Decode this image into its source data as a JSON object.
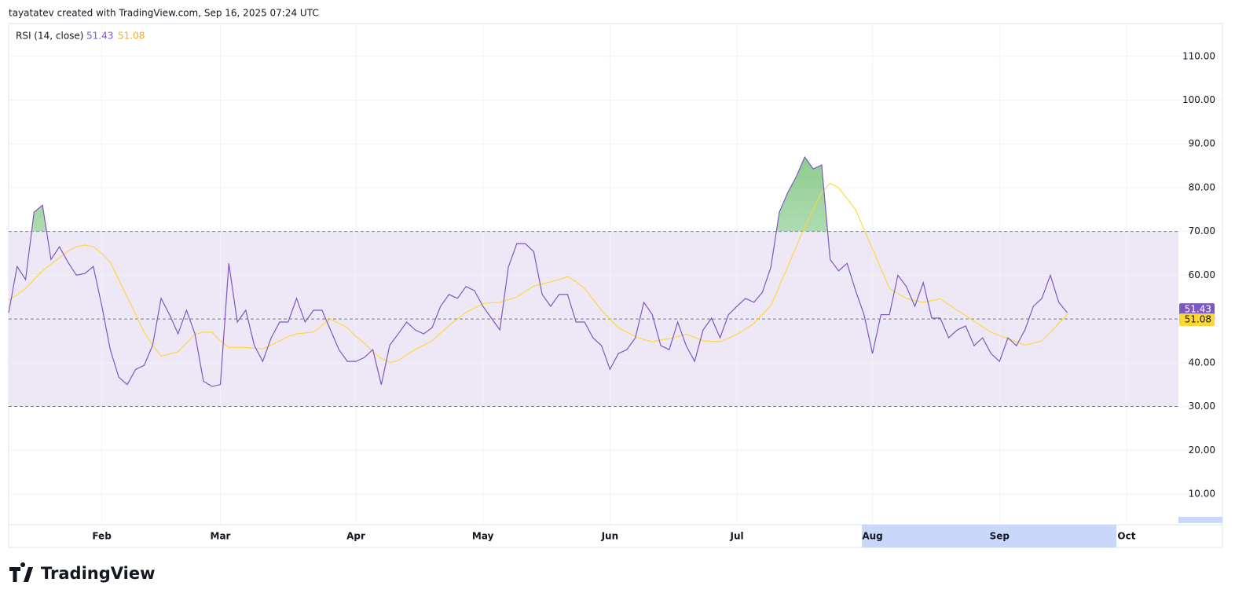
{
  "header": {
    "text": "tayatatev created with TradingView.com, Sep 16, 2025 07:24 UTC"
  },
  "footer": {
    "logo": "TradingView"
  },
  "chart_data": {
    "type": "line",
    "indicator": "RSI (14, close)",
    "categories": [
      null,
      null,
      null,
      null,
      null,
      null,
      null,
      null,
      null,
      null,
      null,
      "Feb",
      null,
      null,
      null,
      null,
      null,
      null,
      null,
      null,
      null,
      null,
      null,
      null,
      null,
      "Mar",
      null,
      null,
      null,
      null,
      null,
      null,
      null,
      null,
      null,
      null,
      null,
      null,
      null,
      null,
      null,
      "Apr",
      null,
      null,
      null,
      null,
      null,
      null,
      null,
      null,
      null,
      null,
      null,
      null,
      null,
      null,
      "May",
      null,
      null,
      null,
      null,
      null,
      null,
      null,
      null,
      null,
      null,
      null,
      null,
      null,
      null,
      "Jun",
      null,
      null,
      null,
      null,
      null,
      null,
      null,
      null,
      null,
      null,
      null,
      null,
      null,
      null,
      "Jul",
      null,
      null,
      null,
      null,
      null,
      null,
      null,
      null,
      null,
      null,
      null,
      null,
      null,
      null,
      null,
      "Aug",
      null,
      null,
      null,
      null,
      null,
      null,
      null,
      null,
      null,
      null,
      null,
      null,
      null,
      null,
      "Sep",
      null,
      null,
      null,
      null,
      null,
      null,
      null,
      null,
      null,
      null,
      null,
      null,
      null,
      null,
      "Oct",
      null,
      null,
      null,
      null,
      null
    ],
    "series": [
      {
        "color": "#7e57c2",
        "values": [
          51.4,
          62,
          59,
          74.4,
          76,
          63.6,
          66.5,
          63,
          60,
          60.4,
          62,
          53,
          43,
          36.7,
          35,
          38.5,
          39.4,
          44,
          54.7,
          51,
          46.6,
          52,
          46.6,
          35.8,
          34.6,
          35,
          62.7,
          49.3,
          52,
          44,
          40.3,
          45.7,
          49.3,
          49.3,
          54.7,
          49.3,
          52,
          52,
          47.5,
          43,
          40.3,
          40.3,
          41.2,
          43,
          35,
          44,
          46.6,
          49.3,
          47.5,
          46.6,
          48,
          52.9,
          55.6,
          54.7,
          57.4,
          56.5,
          52.9,
          50.2,
          47.5,
          61.8,
          67.2,
          67.2,
          65.4,
          55.6,
          52.9,
          55.6,
          55.6,
          49.3,
          49.3,
          45.7,
          43.9,
          38.5,
          42.1,
          43,
          45.7,
          53.8,
          51,
          43.9,
          43,
          49.3,
          43.9,
          40.3,
          47.5,
          50.2,
          45.7,
          51,
          52.9,
          54.7,
          53.8,
          56.1,
          61.8,
          74.4,
          78.9,
          82.5,
          87,
          84.3,
          85.2,
          63.6,
          61,
          62.7,
          56.5,
          51,
          42.1,
          51,
          51,
          60,
          57.4,
          52.9,
          58.3,
          50.2,
          50.2,
          45.7,
          47.5,
          48.4,
          43.9,
          45.7,
          42.1,
          40.3,
          45.7,
          43.9,
          47.5,
          52.9,
          54.7,
          60,
          53.8,
          51.43,
          null,
          null,
          null,
          null,
          null,
          null,
          null,
          null,
          null,
          null,
          null,
          null
        ]
      },
      {
        "color": "#fdd835",
        "values": [
          54.3,
          55.5,
          57,
          59,
          61,
          62.5,
          64,
          65.5,
          66.5,
          66.9,
          66.5,
          65,
          63,
          59,
          55,
          51,
          47,
          44,
          41.5,
          42,
          42.5,
          44.5,
          46.5,
          47,
          47,
          45,
          43.5,
          43.5,
          43.5,
          43.3,
          43.2,
          44,
          45,
          46,
          46.6,
          46.8,
          47,
          48.5,
          50,
          49,
          48,
          46,
          44.5,
          42.5,
          41,
          40,
          40.5,
          41.8,
          43,
          44,
          45,
          46.8,
          48.5,
          50,
          51.5,
          52.5,
          53.5,
          53.7,
          53.8,
          54.4,
          55,
          56.3,
          57.5,
          58,
          58.5,
          59,
          59.7,
          58.5,
          57,
          54.5,
          52,
          50,
          48,
          47,
          46,
          45.3,
          44.8,
          45.2,
          45.5,
          46,
          46.5,
          45.8,
          45,
          44.9,
          44.8,
          45.6,
          46.5,
          47.7,
          49,
          51,
          53,
          57.5,
          62,
          66.5,
          71,
          75,
          79,
          81,
          80,
          77.5,
          75,
          70.5,
          66,
          61.5,
          57,
          55.8,
          54.7,
          54.2,
          53.8,
          54.2,
          54.6,
          53.3,
          52,
          50.8,
          49.5,
          48.2,
          47,
          46.2,
          45.5,
          44.8,
          44,
          44.5,
          45,
          47,
          49,
          51.08,
          null,
          null,
          null,
          null,
          null,
          null,
          null,
          null,
          null,
          null,
          null,
          null
        ]
      }
    ],
    "last_value_labels": [
      "51.43",
      "51.08"
    ],
    "bands": {
      "upper": 70,
      "middle": 50,
      "lower": 30,
      "fill": "#ede7f6"
    },
    "overbought_fill": "#66bb6a",
    "ylim": [
      3,
      117.5
    ],
    "yticks": [
      {
        "value": 10,
        "label": "10.00"
      },
      {
        "value": 20,
        "label": "20.00"
      },
      {
        "value": 30,
        "label": "30.00"
      },
      {
        "value": 40,
        "label": "40.00"
      },
      {
        "value": 50,
        "label": "50.00"
      },
      {
        "value": 60,
        "label": "60.00"
      },
      {
        "value": 70,
        "label": "70.00"
      },
      {
        "value": 80,
        "label": "80.00"
      },
      {
        "value": 90,
        "label": "90.00"
      },
      {
        "value": 100,
        "label": "100.00"
      },
      {
        "value": 110,
        "label": "110.00"
      }
    ],
    "grid": true
  }
}
